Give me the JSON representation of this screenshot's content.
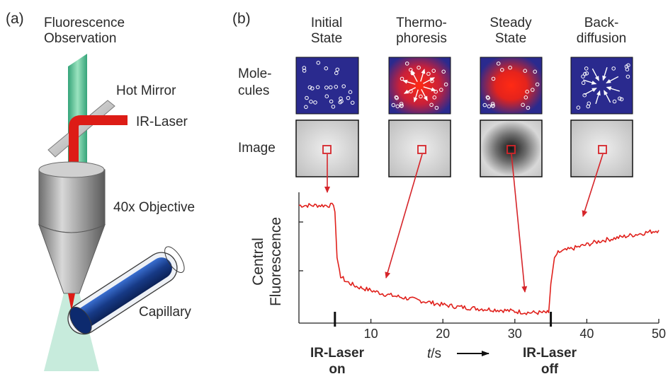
{
  "panel_a": {
    "letter": "(a)",
    "fluorescence_line1": "Fluorescence",
    "fluorescence_line2": "Observation",
    "hot_mirror": "Hot Mirror",
    "ir_laser": "IR-Laser",
    "objective": "40x Objective",
    "capillary": "Capillary"
  },
  "panel_b": {
    "letter": "(b)",
    "row_labels": {
      "molecules_line1": "Mole-",
      "molecules_line2": "cules",
      "image": "Image"
    },
    "states": [
      {
        "line1": "Initial",
        "line2": "State"
      },
      {
        "line1": "Thermo-",
        "line2": "phoresis"
      },
      {
        "line1": "Steady",
        "line2": "State"
      },
      {
        "line1": "Back-",
        "line2": "diffusion"
      }
    ],
    "ylabel_line1": "Central",
    "ylabel_line2": "Fluorescence",
    "xlabel_italic": "t",
    "xlabel_unit": "/s",
    "event_on_line1": "IR-Laser",
    "event_on_line2": "on",
    "event_off_line1": "IR-Laser",
    "event_off_line2": "off",
    "colors": {
      "trace": "#e0201b",
      "arrow": "#d6252a",
      "molecule_bg": "#2a2a8e",
      "hotspot": "#ff2010"
    }
  },
  "chart_data": {
    "type": "line",
    "xlim": [
      0,
      50
    ],
    "xticks": [
      10,
      20,
      30,
      40,
      50
    ],
    "xtick_labels": [
      "10",
      "20",
      "30",
      "40",
      "50"
    ],
    "event_markers": [
      5,
      35
    ],
    "grid": false,
    "series": [
      {
        "x": [
          0,
          2,
          4,
          4.8,
          5,
          5.3,
          5.8,
          6.5,
          8,
          10,
          12,
          15,
          18,
          20,
          22,
          25,
          28,
          30,
          32,
          34,
          34.7,
          35,
          35.5,
          36,
          38,
          40,
          42,
          45,
          48,
          50
        ],
        "y": [
          0.9,
          0.9,
          0.9,
          0.9,
          0.85,
          0.5,
          0.36,
          0.32,
          0.28,
          0.25,
          0.22,
          0.19,
          0.16,
          0.14,
          0.125,
          0.11,
          0.1,
          0.09,
          0.08,
          0.08,
          0.08,
          0.3,
          0.5,
          0.54,
          0.57,
          0.6,
          0.63,
          0.66,
          0.69,
          0.71
        ]
      }
    ]
  }
}
